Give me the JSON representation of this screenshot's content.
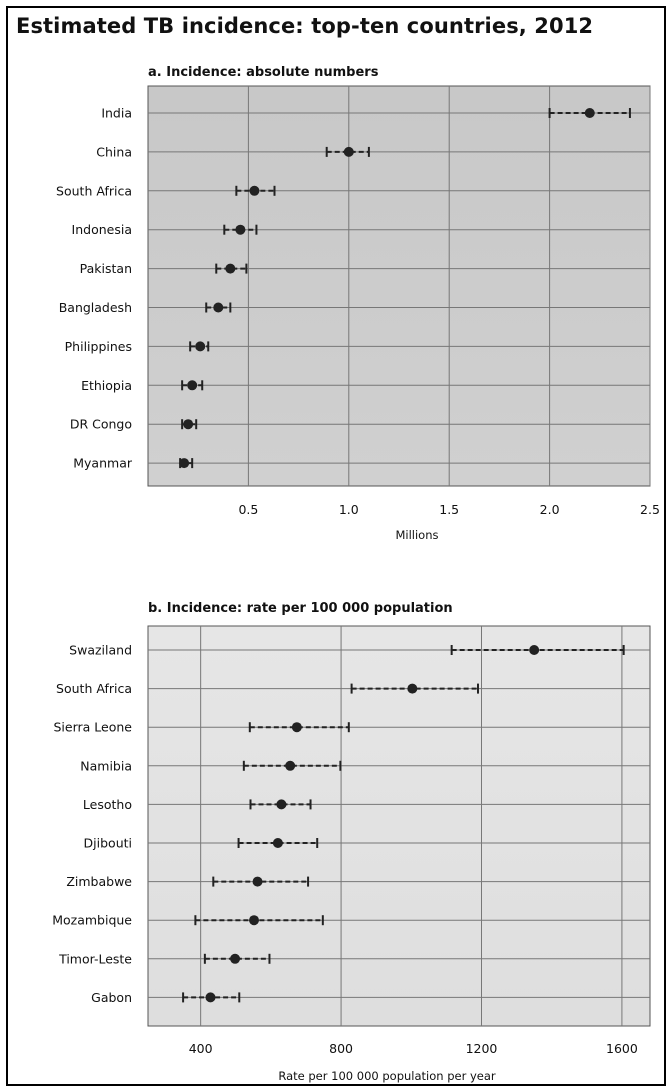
{
  "title": "Estimated TB incidence: top-ten countries, 2012",
  "colors": {
    "plot_bg_a": "#cccccc",
    "plot_bg_b": "#e3e3e3",
    "grid": "#777777",
    "marker": "#222222"
  },
  "chart_data": [
    {
      "type": "scatter",
      "panel_title": "a. Incidence: absolute numbers",
      "xlabel": "Millions",
      "xlim": [
        0,
        2.5
      ],
      "xticks": [
        0.5,
        1.0,
        1.5,
        2.0,
        2.5
      ],
      "xtick_labels": [
        "0.5",
        "1.0",
        "1.5",
        "2.0",
        "2.5"
      ],
      "grid": true,
      "error_bars": "dashed, low-high uncertainty interval",
      "categories": [
        "India",
        "China",
        "South Africa",
        "Indonesia",
        "Pakistan",
        "Bangladesh",
        "Philippines",
        "Ethiopia",
        "DR Congo",
        "Myanmar"
      ],
      "values": [
        2.2,
        1.0,
        0.53,
        0.46,
        0.41,
        0.35,
        0.26,
        0.22,
        0.2,
        0.18
      ],
      "low": [
        2.0,
        0.89,
        0.44,
        0.38,
        0.34,
        0.29,
        0.21,
        0.17,
        0.17,
        0.16
      ],
      "high": [
        2.4,
        1.1,
        0.63,
        0.54,
        0.49,
        0.41,
        0.3,
        0.27,
        0.24,
        0.22
      ]
    },
    {
      "type": "scatter",
      "panel_title": "b. Incidence: rate per 100 000 population",
      "xlabel": "Rate per 100 000 population per year",
      "xlim": [
        250,
        1680
      ],
      "xticks": [
        400,
        800,
        1200,
        1600
      ],
      "xtick_labels": [
        "400",
        "800",
        "1200",
        "1600"
      ],
      "grid": true,
      "error_bars": "dashed, low-high uncertainty interval",
      "categories": [
        "Swaziland",
        "South Africa",
        "Sierra Leone",
        "Namibia",
        "Lesotho",
        "Djibouti",
        "Zimbabwe",
        "Mozambique",
        "Timor-Leste",
        "Gabon"
      ],
      "values": [
        1350,
        1003,
        674,
        655,
        630,
        620,
        562,
        552,
        498,
        428
      ],
      "low": [
        1115,
        830,
        540,
        523,
        542,
        508,
        436,
        385,
        412,
        350
      ],
      "high": [
        1605,
        1190,
        822,
        798,
        713,
        732,
        706,
        748,
        596,
        510
      ]
    }
  ]
}
